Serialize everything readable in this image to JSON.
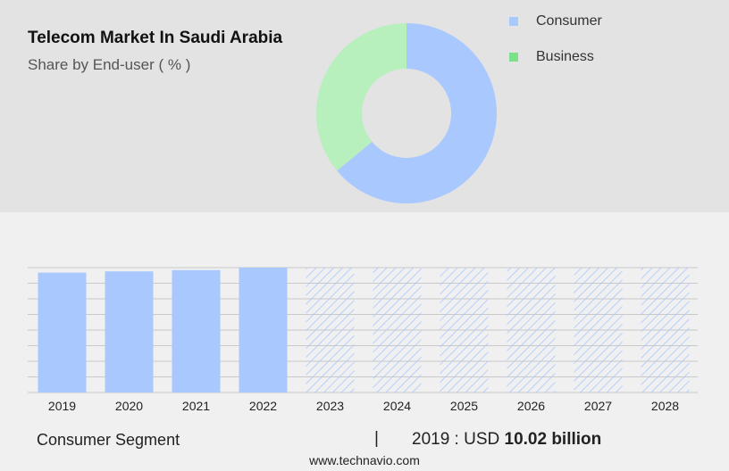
{
  "header": {
    "title": "Telecom Market In Saudi Arabia",
    "subtitle": "Share by End-user ( % )"
  },
  "colors": {
    "consumer": "#a9c8fe",
    "business": "#b7efbd",
    "business_swatch": "#7ae28a",
    "hatch": "#a9c8fe",
    "grid": "#c9c9c9"
  },
  "legend": [
    {
      "label": "Consumer",
      "color": "#a9c8fe"
    },
    {
      "label": "Business",
      "color": "#7ae28a"
    }
  ],
  "chart_data": [
    {
      "type": "pie",
      "variant": "donut",
      "title": "Share by End-user ( % )",
      "series": [
        {
          "name": "Consumer",
          "value": 64
        },
        {
          "name": "Business",
          "value": 36
        }
      ]
    },
    {
      "type": "bar",
      "categories": [
        "2019",
        "2020",
        "2021",
        "2022",
        "2023",
        "2024",
        "2025",
        "2026",
        "2027",
        "2028"
      ],
      "values": [
        96,
        97,
        98,
        100,
        100,
        100,
        100,
        100,
        100,
        100
      ],
      "forecast_from": "2023",
      "forecast_style": "hatched",
      "ylim": [
        0,
        100
      ],
      "grid": true,
      "y_tick_labels_shown": false
    }
  ],
  "footer": {
    "segment_label": "Consumer Segment",
    "separator": "|",
    "year_prefix": "2019 : USD ",
    "value": "10.02 billion",
    "website": "www.technavio.com"
  }
}
